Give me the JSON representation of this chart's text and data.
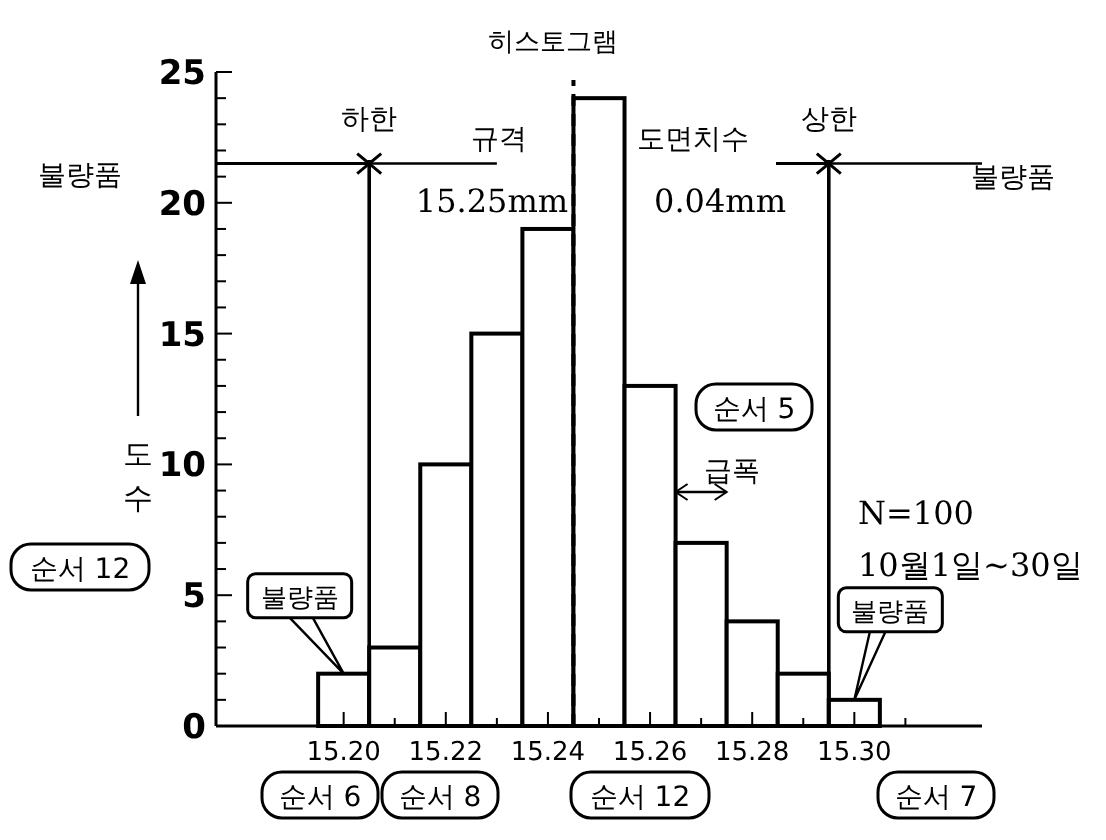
{
  "chart_data": {
    "type": "histogram",
    "title": "히스토그램",
    "ylabel": "도수",
    "bins": [
      15.195,
      15.205,
      15.215,
      15.225,
      15.235,
      15.245,
      15.255,
      15.265,
      15.275,
      15.285,
      15.295,
      15.305
    ],
    "values": [
      2,
      3,
      10,
      15,
      19,
      24,
      13,
      7,
      4,
      2,
      1
    ],
    "xlim": [
      15.175,
      15.325
    ],
    "xticks": [
      {
        "value": 15.2,
        "label": "15.20"
      },
      {
        "value": 15.205,
        "label": null
      },
      {
        "value": 15.21,
        "label": null
      },
      {
        "value": 15.215,
        "label": null
      },
      {
        "value": 15.22,
        "label": "15.22"
      },
      {
        "value": 15.225,
        "label": null
      },
      {
        "value": 15.23,
        "label": null
      },
      {
        "value": 15.235,
        "label": null
      },
      {
        "value": 15.24,
        "label": "15.24"
      },
      {
        "value": 15.245,
        "label": null
      },
      {
        "value": 15.25,
        "label": null
      },
      {
        "value": 15.255,
        "label": null
      },
      {
        "value": 15.26,
        "label": "15.26"
      },
      {
        "value": 15.265,
        "label": null
      },
      {
        "value": 15.27,
        "label": null
      },
      {
        "value": 15.275,
        "label": null
      },
      {
        "value": 15.28,
        "label": "15.28"
      },
      {
        "value": 15.285,
        "label": null
      },
      {
        "value": 15.29,
        "label": null
      },
      {
        "value": 15.295,
        "label": null
      },
      {
        "value": 15.3,
        "label": "15.30"
      },
      {
        "value": 15.305,
        "label": null
      },
      {
        "value": 15.31,
        "label": null
      }
    ],
    "ylim": [
      0,
      25
    ],
    "yticks": [
      0,
      {
        "value": 1,
        "label": null
      },
      {
        "value": 2,
        "label": null
      },
      {
        "value": 3,
        "label": null
      },
      {
        "value": 4,
        "label": null
      },
      5,
      {
        "value": 6,
        "label": null
      },
      {
        "value": 7,
        "label": null
      },
      {
        "value": 8,
        "label": null
      },
      {
        "value": 9,
        "label": null
      },
      10,
      {
        "value": 11,
        "label": null
      },
      {
        "value": 12,
        "label": null
      },
      {
        "value": 13,
        "label": null
      },
      {
        "value": 14,
        "label": null
      },
      15,
      {
        "value": 16,
        "label": null
      },
      {
        "value": 17,
        "label": null
      },
      {
        "value": 18,
        "label": null
      },
      {
        "value": 19,
        "label": null
      },
      20,
      {
        "value": 21,
        "label": null
      },
      {
        "value": 22,
        "label": null
      },
      {
        "value": 23,
        "label": null
      },
      {
        "value": 24,
        "label": null
      },
      25
    ],
    "ref_lines": [
      {
        "axis": "x",
        "value": 15.205,
        "label": "하한",
        "line_style": "solid"
      },
      {
        "axis": "x",
        "value": 15.295,
        "label": "상한",
        "line_style": "solid"
      },
      {
        "axis": "x",
        "value": 15.245,
        "label": "도면치수",
        "line_style": "dashed"
      }
    ],
    "annotations": [
      "불량품",
      {
        "text": "불량품",
        "x": 15.295,
        "y": 21.5
      },
      {
        "text": "규격",
        "x": 15.205,
        "y": 21.5
      },
      "15.25mm",
      "0.04mm",
      "급폭",
      "순서 5",
      "N=100",
      "10월1일~30일",
      "순서 12",
      "순서 6",
      "순서 8",
      "순서 12",
      "순서 7",
      {
        "text": "불량품",
        "x": 15.2,
        "y": 2
      },
      {
        "text": "불량품",
        "x": 15.3,
        "y": 1
      }
    ],
    "grid": false
  }
}
